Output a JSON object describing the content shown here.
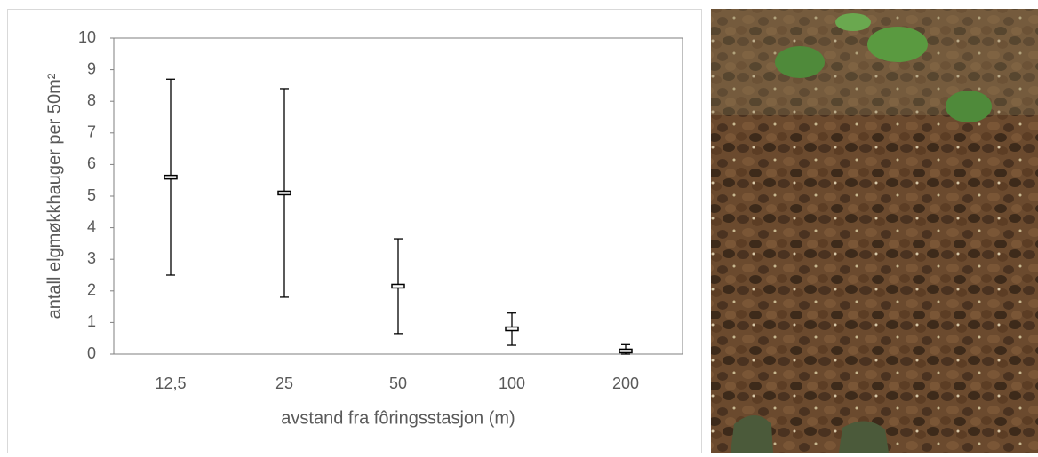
{
  "chart_data": {
    "type": "errorbar",
    "xlabel": "avstand fra fôringsstasjon  (m)",
    "ylabel": "antall elgmøkkhauger per 50m²",
    "categories": [
      "12,5",
      "25",
      "50",
      "100",
      "200"
    ],
    "values": [
      5.6,
      5.1,
      2.15,
      0.8,
      0.1
    ],
    "lower": [
      2.5,
      1.8,
      0.65,
      0.28,
      0.0
    ],
    "upper": [
      8.7,
      8.4,
      3.65,
      1.3,
      0.3
    ],
    "color": "#000000",
    "ylim": [
      0,
      10
    ],
    "yticks": [
      0,
      1,
      2,
      3,
      4,
      5,
      6,
      7,
      8,
      9,
      10
    ],
    "grid": false
  }
}
